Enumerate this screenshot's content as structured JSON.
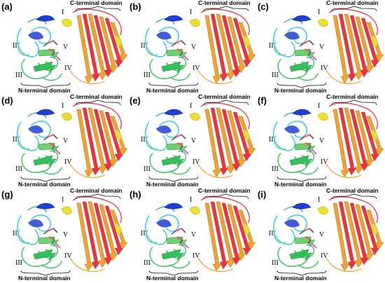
{
  "figure": {
    "panels": [
      {
        "label": "(a)",
        "c_label": "C-terminal domain",
        "n_label": "N-terminal domain",
        "romans": [
          "I",
          "II",
          "III",
          "IV",
          "V"
        ]
      },
      {
        "label": "(b)",
        "c_label": "C-terminal domain",
        "n_label": "N-terminal domain",
        "romans": [
          "I",
          "II",
          "III",
          "IV",
          "V"
        ]
      },
      {
        "label": "(c)",
        "c_label": "C-terminal domain",
        "n_label": "N-terminal domain",
        "romans": [
          "I",
          "II",
          "III",
          "IV",
          "V"
        ]
      },
      {
        "label": "(d)",
        "c_label": "C-terminal domain",
        "n_label": "N-terminal domain",
        "romans": [
          "I",
          "II",
          "III",
          "IV",
          "V"
        ]
      },
      {
        "label": "(e)",
        "c_label": "C-terminal domain",
        "n_label": "N-terminal domain",
        "romans": [
          "I",
          "II",
          "III",
          "IV",
          "V"
        ]
      },
      {
        "label": "(f)",
        "c_label": "C-terminal domain",
        "n_label": "N-terminal domain",
        "romans": [
          "I",
          "II",
          "III",
          "IV",
          "V"
        ]
      },
      {
        "label": "(g)",
        "c_label": "C-terminal domain",
        "n_label": "N-terminal domain",
        "romans": [
          "I",
          "II",
          "III",
          "IV",
          "V"
        ]
      },
      {
        "label": "(h)",
        "c_label": "C-terminal domain",
        "n_label": "N-terminal domain",
        "romans": [
          "I",
          "II",
          "III",
          "IV",
          "V"
        ]
      },
      {
        "label": "(i)",
        "c_label": "C-terminal domain",
        "n_label": "N-terminal domain",
        "romans": [
          "I",
          "II",
          "III",
          "IV",
          "V"
        ]
      }
    ],
    "colors": {
      "blue": "#1f3fd0",
      "cyan": "#2ec4e6",
      "green": "#33c05a",
      "yellow": "#e8e030",
      "orange": "#f0a020",
      "red": "#e8283c",
      "magenta": "#d83cc0"
    }
  }
}
